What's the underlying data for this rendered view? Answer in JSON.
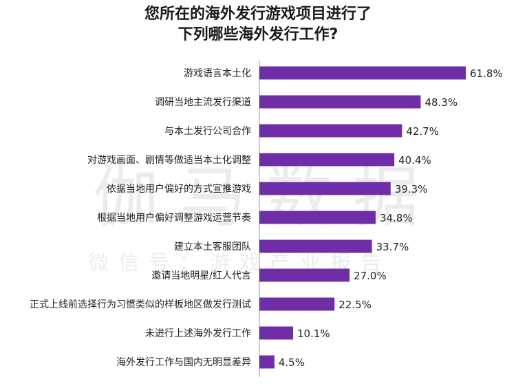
{
  "title_lines": [
    "您所在的海外发行游戏项目进行了",
    "下列哪些海外发行工作?"
  ],
  "watermark": {
    "main": "伽马数据",
    "sub": "微信号：游戏产业报告"
  },
  "chart_data": {
    "type": "bar",
    "orientation": "horizontal",
    "title": "您所在的海外发行游戏项目进行了下列哪些海外发行工作?",
    "categories": [
      "游戏语言本土化",
      "调研当地主流发行渠道",
      "与本土发行公司合作",
      "对游戏画面、剧情等做适当本土化调整",
      "依据当地用户偏好的方式宣推游戏",
      "根据当地用户偏好调整游戏运营节奏",
      "建立本土客服团队",
      "邀请当地明星/红人代言",
      "正式上线前选择行为习惯类似的样板地区做发行测试",
      "未进行上述海外发行工作",
      "海外发行工作与国内无明显差异"
    ],
    "values": [
      61.8,
      48.3,
      42.7,
      40.4,
      39.3,
      34.8,
      33.7,
      27.0,
      22.5,
      10.1,
      4.5
    ],
    "value_labels": [
      "61.8%",
      "48.3%",
      "42.7%",
      "40.4%",
      "39.3%",
      "34.8%",
      "33.7%",
      "27.0%",
      "22.5%",
      "10.1%",
      "4.5%"
    ],
    "unit": "%",
    "bar_color": "#6f2da8",
    "xlim": [
      0,
      65
    ],
    "grid": false,
    "legend": "none"
  }
}
